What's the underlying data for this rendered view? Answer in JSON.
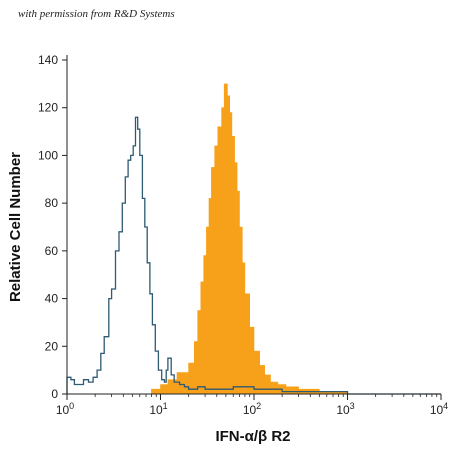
{
  "credit": "with permission from R&D Systems",
  "colors": {
    "filled": "#f7a11a",
    "outline": "#2e5a73",
    "axis": "#222222"
  },
  "chart_data": {
    "type": "histogram",
    "title": "",
    "xlabel": "IFN-α/β R2",
    "ylabel": "Relative Cell Number",
    "x_scale": "log",
    "xlim": [
      1,
      10000
    ],
    "ylim": [
      0,
      140
    ],
    "x_ticks": [
      {
        "value": 1,
        "base": "10",
        "exp": "0"
      },
      {
        "value": 10,
        "base": "10",
        "exp": "1"
      },
      {
        "value": 100,
        "base": "10",
        "exp": "2"
      },
      {
        "value": 1000,
        "base": "10",
        "exp": "3"
      },
      {
        "value": 10000,
        "base": "10",
        "exp": "4"
      }
    ],
    "y_ticks": [
      0,
      20,
      40,
      60,
      80,
      100,
      120,
      140
    ],
    "grid": false,
    "series": [
      {
        "style": "outline",
        "x": [
          1.0,
          1.1,
          1.2,
          1.3,
          1.5,
          1.7,
          1.9,
          2.1,
          2.3,
          2.5,
          2.8,
          3.0,
          3.3,
          3.6,
          3.9,
          4.2,
          4.5,
          4.8,
          5.1,
          5.4,
          5.7,
          6.0,
          6.4,
          6.8,
          7.2,
          7.7,
          8.2,
          8.8,
          9.5,
          10.3,
          11.0,
          11.5,
          12.0,
          13.0,
          14.0,
          16.0,
          18.0,
          20.0,
          25.0,
          30.0,
          40.0,
          60.0,
          100.0,
          200.0,
          500.0,
          1000.0,
          10000.0
        ],
        "y": [
          7,
          6,
          4,
          4,
          6,
          5,
          7,
          10,
          17,
          24,
          40,
          44,
          60,
          68,
          80,
          91,
          98,
          100,
          104,
          116,
          111,
          100,
          82,
          70,
          55,
          42,
          29,
          18,
          10,
          6,
          5,
          10,
          15,
          8,
          5,
          4,
          3,
          2,
          3,
          2,
          2,
          3,
          2,
          1,
          1,
          0,
          0
        ]
      },
      {
        "style": "filled",
        "x": [
          5.0,
          8.0,
          10.0,
          12.0,
          15.0,
          20.0,
          23.0,
          25.0,
          27.0,
          29.0,
          31.0,
          33.0,
          35.0,
          38.0,
          41.0,
          45.0,
          48.0,
          52.0,
          55.0,
          58.0,
          62.0,
          66.0,
          70.0,
          75.0,
          80.0,
          90.0,
          100.0,
          115.0,
          130.0,
          150.0,
          180.0,
          220.0,
          300.0,
          500.0,
          1000.0,
          2000.0
        ],
        "y": [
          0,
          2,
          4,
          6,
          9,
          13,
          22,
          35,
          47,
          58,
          70,
          82,
          95,
          104,
          112,
          120,
          130,
          125,
          118,
          108,
          97,
          85,
          70,
          55,
          42,
          28,
          18,
          12,
          8,
          5,
          4,
          3,
          2,
          1,
          0,
          0
        ]
      }
    ]
  }
}
